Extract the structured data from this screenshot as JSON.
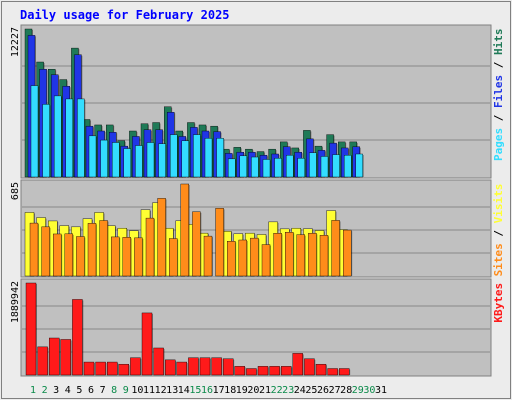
{
  "title": "Daily usage for February 2025",
  "colors": {
    "background": "#ececec",
    "panel": "#c0c0c0",
    "title": "#0000ff",
    "hits": "#1f7a57",
    "files": "#2035e6",
    "pages": "#33ddff",
    "visits": "#ffff33",
    "sites": "#ff8c1a",
    "kbytes": "#ff1a1a",
    "weekday_label": "#000000",
    "weekend_label": "#0b8a4a"
  },
  "chart_data": [
    {
      "type": "bar",
      "panel": "hits-files-pages",
      "max_label": "12227",
      "side_label": [
        {
          "text": "Pages",
          "color": "#33ddff"
        },
        {
          "text": " / ",
          "color": "#000000"
        },
        {
          "text": "Files",
          "color": "#2035e6"
        },
        {
          "text": " / ",
          "color": "#000000"
        },
        {
          "text": "Hits",
          "color": "#1f7a57"
        }
      ],
      "ylim": [
        0,
        12227
      ],
      "series": [
        {
          "name": "Hits",
          "color": "#1f7a57",
          "values": [
            12227,
            9500,
            8900,
            8050,
            10650,
            4750,
            4300,
            4300,
            3000,
            3800,
            4400,
            4500,
            5800,
            3800,
            4500,
            4300,
            4200,
            2300,
            2450,
            2300,
            2100,
            2300,
            2900,
            2400,
            3850,
            2550,
            3500,
            2900,
            2900,
            0,
            0
          ]
        },
        {
          "name": "Files",
          "color": "#2035e6",
          "values": [
            11700,
            8900,
            8450,
            7500,
            10100,
            4200,
            3800,
            3700,
            2550,
            3350,
            3900,
            3900,
            5350,
            3350,
            4100,
            3800,
            3750,
            1950,
            2050,
            2050,
            1800,
            1900,
            2500,
            2050,
            3150,
            2200,
            2800,
            2400,
            2500,
            0,
            0
          ]
        },
        {
          "name": "Pages",
          "color": "#33ddff",
          "values": [
            7550,
            6000,
            6700,
            6450,
            6450,
            3400,
            3050,
            2850,
            2350,
            2600,
            2850,
            2750,
            3500,
            3000,
            3500,
            3200,
            3200,
            1500,
            1750,
            1650,
            1450,
            1550,
            1800,
            1550,
            2000,
            1700,
            1850,
            1800,
            1900,
            0,
            0
          ]
        }
      ]
    },
    {
      "type": "bar",
      "panel": "visits-sites",
      "max_label": "685",
      "side_label": [
        {
          "text": "Sites",
          "color": "#ff8c1a"
        },
        {
          "text": " / ",
          "color": "#000000"
        },
        {
          "text": "Visits",
          "color": "#ffff33"
        }
      ],
      "ylim": [
        0,
        685
      ],
      "series": [
        {
          "name": "Visits",
          "color": "#ffff33",
          "values": [
            473,
            435,
            410,
            375,
            366,
            426,
            473,
            375,
            356,
            337,
            493,
            546,
            356,
            412,
            384,
            319,
            0,
            333,
            315,
            319,
            309,
            403,
            351,
            356,
            352,
            339,
            487,
            346,
            0,
            0,
            0
          ]
        },
        {
          "name": "Sites",
          "color": "#ff8c1a",
          "values": [
            394,
            366,
            313,
            314,
            294,
            392,
            413,
            291,
            288,
            284,
            431,
            578,
            279,
            685,
            478,
            297,
            504,
            259,
            268,
            282,
            234,
            318,
            326,
            308,
            318,
            303,
            414,
            342,
            0,
            0,
            0
          ]
        }
      ]
    },
    {
      "type": "bar",
      "panel": "kbytes",
      "max_label": "1889942",
      "side_label": [
        {
          "text": "KBytes",
          "color": "#ff1a1a"
        }
      ],
      "ylim": [
        0,
        1889942
      ],
      "series": [
        {
          "name": "KBytes",
          "color": "#ff1a1a",
          "values": [
            1889942,
            578000,
            760000,
            730000,
            1552000,
            266000,
            266000,
            266000,
            222000,
            355000,
            1275000,
            555000,
            311000,
            266000,
            355000,
            355000,
            355000,
            333000,
            178000,
            133000,
            178000,
            178000,
            178000,
            444000,
            333000,
            222000,
            133000,
            133000,
            0,
            0,
            0
          ]
        }
      ]
    }
  ],
  "days": [
    {
      "label": "1",
      "weekend": true
    },
    {
      "label": "2",
      "weekend": true
    },
    {
      "label": "3",
      "weekend": false
    },
    {
      "label": "4",
      "weekend": false
    },
    {
      "label": "5",
      "weekend": false
    },
    {
      "label": "6",
      "weekend": false
    },
    {
      "label": "7",
      "weekend": false
    },
    {
      "label": "8",
      "weekend": true
    },
    {
      "label": "9",
      "weekend": true
    },
    {
      "label": "10",
      "weekend": false
    },
    {
      "label": "11",
      "weekend": false
    },
    {
      "label": "12",
      "weekend": false
    },
    {
      "label": "13",
      "weekend": false
    },
    {
      "label": "14",
      "weekend": false
    },
    {
      "label": "15",
      "weekend": true
    },
    {
      "label": "16",
      "weekend": true
    },
    {
      "label": "17",
      "weekend": false
    },
    {
      "label": "18",
      "weekend": false
    },
    {
      "label": "19",
      "weekend": false
    },
    {
      "label": "20",
      "weekend": false
    },
    {
      "label": "21",
      "weekend": false
    },
    {
      "label": "22",
      "weekend": true
    },
    {
      "label": "23",
      "weekend": true
    },
    {
      "label": "24",
      "weekend": false
    },
    {
      "label": "25",
      "weekend": false
    },
    {
      "label": "26",
      "weekend": false
    },
    {
      "label": "27",
      "weekend": false
    },
    {
      "label": "28",
      "weekend": false
    },
    {
      "label": "29",
      "weekend": true
    },
    {
      "label": "30",
      "weekend": true
    },
    {
      "label": "31",
      "weekend": false
    }
  ]
}
